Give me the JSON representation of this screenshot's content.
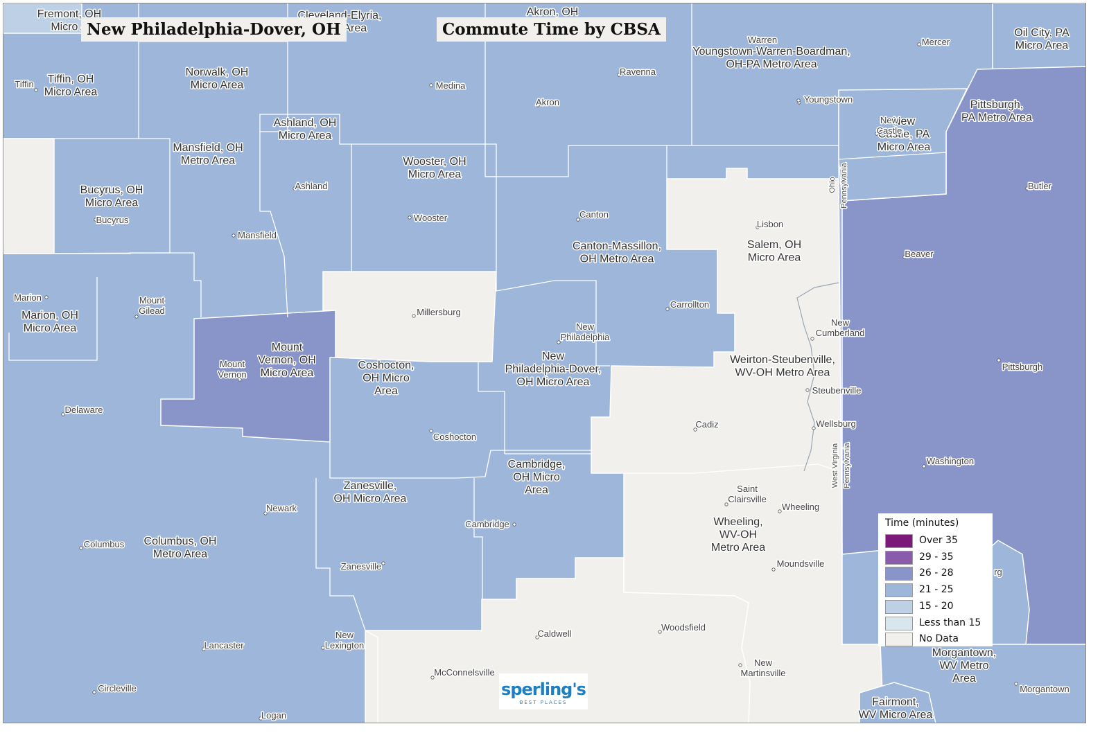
{
  "titles": {
    "left": "New Philadelphia-Dover, OH",
    "right": "Commute Time by CBSA"
  },
  "colors": {
    "over_35": "#7b1a7a",
    "c29_35": "#8a5aab",
    "c26_28": "#8994c8",
    "c21_25": "#9db6d9",
    "c15_20": "#bdd0e6",
    "less_15": "#d8e7ee",
    "no_data": "#f1f0ec"
  },
  "legend": {
    "title": "Time (minutes)",
    "items": [
      {
        "label": "Over 35",
        "color": "#7b1a7a"
      },
      {
        "label": "29 - 35",
        "color": "#8a5aab"
      },
      {
        "label": "26 - 28",
        "color": "#8994c8"
      },
      {
        "label": "21 - 25",
        "color": "#9db6d9"
      },
      {
        "label": "15 - 20",
        "color": "#bdd0e6"
      },
      {
        "label": "Less than 15",
        "color": "#d8e7ee"
      },
      {
        "label": "No Data",
        "color": "#f1f0ec"
      }
    ]
  },
  "area_labels": [
    "Fremont, OH\nMicro A",
    "Cleveland-Elyria,\nMetro Area",
    "Akron, OH",
    "Oil City, PA\nMicro Area",
    "Youngstown-Warren-Boardman,\nOH-PA Metro Area",
    "Tiffin, OH\nMicro Area",
    "Norwalk, OH\nMicro Area",
    "Ashland, OH\nMicro Area",
    "Mansfield, OH\nMetro Area",
    "Wooster, OH\nMicro Area",
    "Bucyrus, OH\nMicro Area",
    "Pittsburgh,\nPA Metro Area",
    "New\nCastle, PA\nMicro Area",
    "Salem, OH\nMicro Area",
    "Canton-Massillon,\nOH Metro Area",
    "Marion, OH\nMicro Area",
    "Mount\nVernon, OH\nMicro Area",
    "Coshocton,\nOH Micro\nArea",
    "New\nPhiladelphia-Dover,\nOH Micro Area",
    "Weirton-Steubenville,\nWV-OH Metro Area",
    "Cambridge,\nOH Micro\nArea",
    "Zanesville,\nOH Micro Area",
    "Columbus, OH\nMetro Area",
    "Wheeling,\nWV-OH\nMetro Area",
    "Morgantown,\nWV Metro\nArea",
    "Fairmont,\nWV Micro Area"
  ],
  "cities": [
    "Warren",
    "Mercer",
    "Tiffin",
    "Medina",
    "Ravenna",
    "Akron",
    "Youngstown",
    "New\nCastle",
    "Butler",
    "Ashland",
    "Wooster",
    "Canton",
    "Lisbon",
    "Bucyrus",
    "Mansfield",
    "Beaver",
    "Marion",
    "Mount\nGilead",
    "Millersburg",
    "Carrollton",
    "New\nCumberland",
    "New\nPhiladelphia",
    "Pittsburgh",
    "Mount\nVernon",
    "Steubenville",
    "Delaware",
    "Coshocton",
    "Cadiz",
    "Wellsburg",
    "Washington",
    "Newark",
    "Saint\nClairsville",
    "Wheeling",
    "Cambridge",
    "Columbus",
    "Moundsville",
    "Zanesville",
    "rg",
    "Caldwell",
    "Woodsfield",
    "Lancaster",
    "New\nLexington",
    "New\nMartinsville",
    "McConnelsville",
    "Morgantown",
    "Circleville",
    "Logan"
  ],
  "state_labels": [
    "Ohio",
    "Pennsylvania",
    "West Virginia",
    "Pennsylvania"
  ],
  "logo": {
    "main": "sperling's",
    "sub": "BEST PLACES"
  }
}
